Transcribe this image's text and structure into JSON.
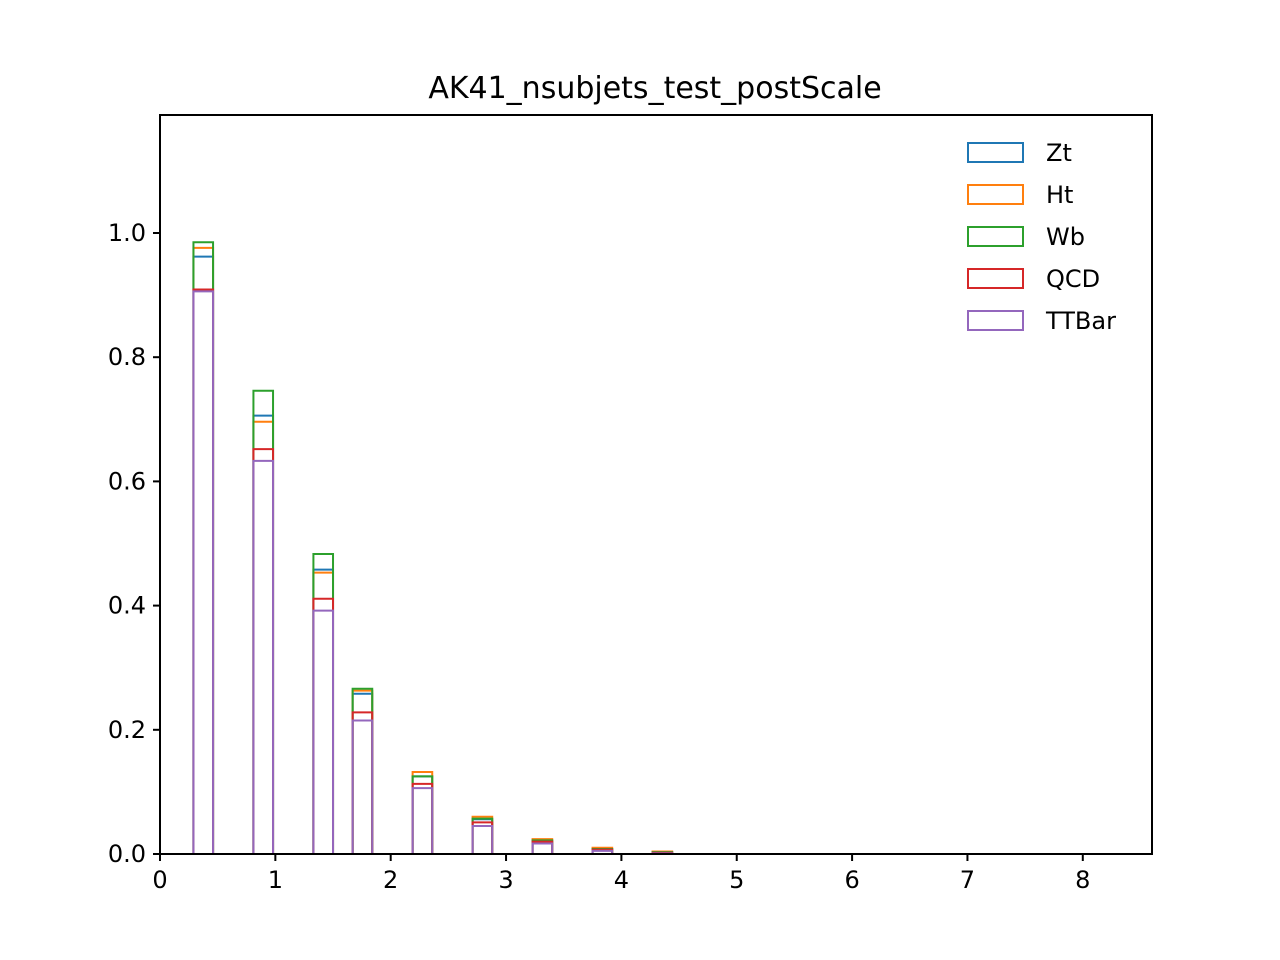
{
  "chart_data": {
    "type": "bar",
    "title": "AK41_nsubjets_test_postScale",
    "xlabel": "",
    "ylabel": "",
    "xlim": [
      0,
      8.6
    ],
    "ylim": [
      0,
      1.19
    ],
    "x_ticks": [
      "0",
      "1",
      "2",
      "3",
      "4",
      "5",
      "6",
      "7",
      "8"
    ],
    "y_ticks": [
      "0.0",
      "0.2",
      "0.4",
      "0.6",
      "0.8",
      "1.0"
    ],
    "grid": false,
    "legend_position": "top-right",
    "histtype": "step",
    "bins": [
      [
        0.29,
        0.46
      ],
      [
        0.81,
        0.98
      ],
      [
        1.33,
        1.5
      ],
      [
        1.67,
        1.84
      ],
      [
        2.19,
        2.36
      ],
      [
        2.71,
        2.88
      ],
      [
        3.23,
        3.4
      ],
      [
        3.75,
        3.92
      ],
      [
        4.27,
        4.44
      ]
    ],
    "series": [
      {
        "name": "Zt",
        "color": "#1f77b4",
        "values": [
          0.962,
          0.706,
          0.458,
          0.258,
          0.125,
          0.056,
          0.022,
          0.008,
          0.003
        ]
      },
      {
        "name": "Ht",
        "color": "#ff7f0e",
        "values": [
          0.976,
          0.696,
          0.453,
          0.263,
          0.132,
          0.06,
          0.024,
          0.01,
          0.004
        ]
      },
      {
        "name": "Wb",
        "color": "#2ca02c",
        "values": [
          0.985,
          0.746,
          0.483,
          0.266,
          0.125,
          0.057,
          0.022,
          0.008,
          0.003
        ]
      },
      {
        "name": "QCD",
        "color": "#d62728",
        "values": [
          0.909,
          0.652,
          0.411,
          0.228,
          0.113,
          0.051,
          0.02,
          0.007,
          0.002
        ]
      },
      {
        "name": "TTBar",
        "color": "#9467bd",
        "values": [
          0.906,
          0.633,
          0.392,
          0.215,
          0.106,
          0.045,
          0.017,
          0.005,
          0.001
        ]
      }
    ]
  }
}
